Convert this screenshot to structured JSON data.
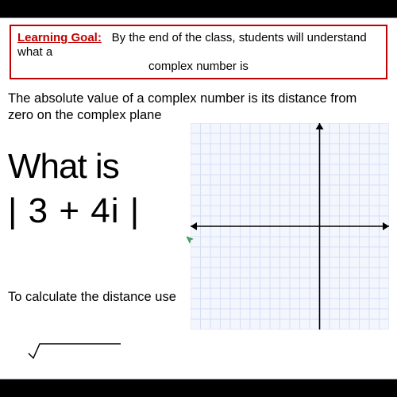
{
  "goal": {
    "label": "Learning Goal:",
    "line1": "By the end of the class, students will understand what a",
    "line2": "complex number is"
  },
  "definition": {
    "line1": "The absolute value of a complex number is its distance from",
    "line2": "zero on the complex plane"
  },
  "question": {
    "line1": "What is",
    "line2": "| 3 + 4i |"
  },
  "calc_prompt": "To calculate the distance use",
  "colors": {
    "goal_border": "#c00000",
    "goal_label": "#c00000",
    "grid_line": "#d6dff5",
    "grid_bg": "#f3f6fd",
    "axis": "#000000",
    "text": "#000000"
  },
  "grid": {
    "type": "coordinate-plane",
    "rows": 20,
    "cols": 20,
    "origin_col": 13,
    "origin_row": 10,
    "bg": "#f3f6fd",
    "line_color": "#d6dff5",
    "axis_color": "#000000",
    "axis_width": 1.6,
    "arrow_size": 8
  }
}
